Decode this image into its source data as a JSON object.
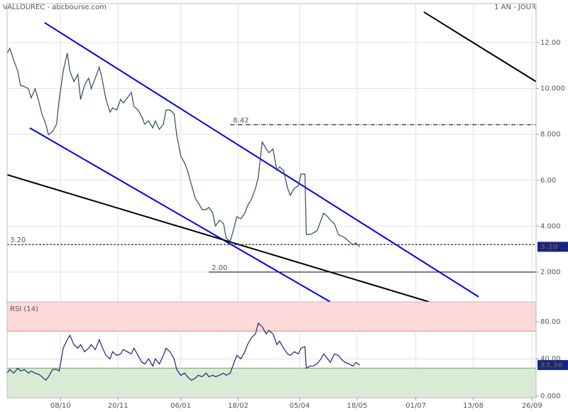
{
  "chart_data": [
    {
      "type": "line",
      "title": "VALLOUREC - abcbourse.com",
      "subtitle": "1 AN - JOUR",
      "x": [
        -40,
        -38,
        -35,
        -32,
        -30,
        -27,
        -24,
        -22,
        -19,
        -16,
        -14,
        -11,
        -9,
        -6,
        -3,
        -1,
        2,
        5,
        7,
        10,
        13,
        15,
        18,
        21,
        23,
        26,
        29,
        31,
        34,
        37,
        39,
        42,
        45,
        47,
        50,
        53,
        55,
        58,
        61,
        63,
        66,
        69,
        71,
        74,
        77,
        79,
        82,
        85,
        87,
        90,
        93,
        95,
        98,
        101,
        103,
        106,
        109,
        111,
        114,
        116,
        119,
        122,
        124,
        127,
        130,
        132,
        135,
        138,
        140,
        143,
        146,
        148,
        151,
        154,
        156,
        159,
        162,
        164,
        167,
        170,
        172,
        175,
        178,
        180,
        183,
        184,
        187,
        189,
        192,
        195,
        197,
        200,
        202,
        205,
        208,
        210,
        213,
        216,
        219,
        221,
        224
      ],
      "series": [
        {
          "color": "#2e4a5a",
          "values": [
            11.54,
            11.75,
            11.23,
            10.76,
            10.14,
            10.08,
            9.99,
            9.59,
            9.99,
            9.37,
            8.9,
            8.44,
            7.98,
            8.13,
            8.44,
            9.52,
            10.76,
            11.54,
            10.76,
            10.3,
            10.61,
            9.52,
            10.14,
            10.45,
            9.99,
            10.45,
            10.92,
            10.45,
            9.52,
            8.97,
            9.15,
            9.06,
            9.52,
            9.37,
            9.59,
            9.83,
            9.21,
            9.06,
            8.75,
            8.44,
            8.59,
            8.28,
            8.59,
            8.22,
            8.44,
            9.06,
            9.06,
            8.9,
            7.98,
            7.05,
            6.74,
            6.43,
            5.81,
            5.19,
            5.03,
            4.72,
            4.72,
            4.82,
            4.57,
            4.01,
            4.26,
            4.11,
            3.49,
            3.33,
            3.95,
            4.41,
            4.32,
            4.57,
            4.88,
            5.19,
            5.65,
            6.12,
            7.67,
            7.36,
            7.2,
            7.36,
            6.43,
            6.58,
            6.43,
            5.65,
            5.34,
            5.65,
            5.75,
            6.27,
            6.27,
            3.64,
            3.64,
            3.7,
            3.8,
            4.26,
            4.57,
            4.41,
            4.26,
            4.11,
            3.64,
            3.58,
            3.49,
            3.33,
            3.18,
            3.27,
            3.1
          ]
        }
      ],
      "last_value_label": "3.10",
      "label_color": "#1a237e",
      "xlim": [
        -40,
        356
      ],
      "xticks": [
        {
          "value": 0,
          "label": "08/10"
        },
        {
          "value": 43,
          "label": "20/11"
        },
        {
          "value": 90,
          "label": "06/01"
        },
        {
          "value": 133,
          "label": "18/02"
        },
        {
          "value": 179,
          "label": "05/04"
        },
        {
          "value": 222,
          "label": "18/05"
        },
        {
          "value": 266,
          "label": "01/07"
        },
        {
          "value": 309,
          "label": "13/08"
        },
        {
          "value": 353,
          "label": "26/09"
        }
      ],
      "ylim": [
        0.7,
        13.7
      ],
      "yticks": [
        {
          "value": 2,
          "label": "2.000"
        },
        {
          "value": 4,
          "label": "4.000"
        },
        {
          "value": 6,
          "label": "6.00"
        },
        {
          "value": 8,
          "label": "8.000"
        },
        {
          "value": 10,
          "label": "10.000"
        },
        {
          "value": 12,
          "label": "12.00"
        }
      ],
      "grid": true,
      "trendlines": [
        {
          "color": "#0000ee",
          "x": [
            -12,
            313
          ],
          "y": [
            12.87,
            0.92
          ]
        },
        {
          "color": "#0000ee",
          "x": [
            -23,
            202
          ],
          "y": [
            8.28,
            0.7
          ]
        },
        {
          "color": "#000000",
          "x": [
            -40,
            276
          ],
          "y": [
            6.24,
            0.7
          ]
        },
        {
          "color": "#000000",
          "x": [
            272,
            356
          ],
          "y": [
            13.33,
            10.3
          ]
        }
      ],
      "levels": [
        {
          "value": 8.42,
          "label": "8.42",
          "x_start": 127,
          "style": "dashdot",
          "label_color": "#cc0000"
        },
        {
          "value": 3.2,
          "label": "3.20",
          "x_start": -40,
          "style": "dashed",
          "label_color": "#cc0000"
        },
        {
          "value": 2,
          "label": "2.00",
          "x_start": 111,
          "style": "solid",
          "label_color": "#cc0000"
        }
      ]
    },
    {
      "type": "line",
      "title": "RSI (14)",
      "series": [
        {
          "color": "#1a237e",
          "values": [
            24.6,
            28.5,
            24.6,
            30,
            26.9,
            28.5,
            24.6,
            26.9,
            24.6,
            23.1,
            20.8,
            16.9,
            20.8,
            28.5,
            28.5,
            26.9,
            51.5,
            60.8,
            65.4,
            55.4,
            51.5,
            55.4,
            47.7,
            51.5,
            55.4,
            50,
            60.8,
            53.1,
            43.8,
            40,
            47.7,
            43.8,
            45.4,
            50,
            47.7,
            45.4,
            51.5,
            43.8,
            36.2,
            34.6,
            40,
            32.3,
            40,
            34.6,
            43.8,
            51.5,
            47.7,
            40,
            28.5,
            22.3,
            24.6,
            20.8,
            16.9,
            19.2,
            22.3,
            20.8,
            24.6,
            20.8,
            22.3,
            20.8,
            22.3,
            24.6,
            22.3,
            24.6,
            36.2,
            43.8,
            40,
            47.7,
            55.4,
            63.1,
            66.9,
            78.5,
            74.6,
            66.9,
            70.8,
            66.9,
            55.4,
            59.2,
            51.5,
            45.4,
            43.8,
            47.7,
            45.4,
            51.5,
            53.1,
            30,
            32.3,
            32.3,
            34.6,
            40,
            45.4,
            40,
            36.2,
            45.4,
            43.8,
            40,
            36.2,
            34.6,
            32.3,
            36.2,
            33.36
          ]
        }
      ],
      "label_color": "#1a237e",
      "ylim": [
        -2,
        101.5
      ],
      "yticks": [
        {
          "value": 0,
          "label": "0.000"
        },
        {
          "value": 40,
          "label": "40.00"
        },
        {
          "value": 80,
          "label": "80.00"
        }
      ],
      "grid": true,
      "zones": [
        {
          "from": 70,
          "to": 101.5,
          "color": "#ffd9d9",
          "edge": "#d98080"
        },
        {
          "from": -2,
          "to": 30,
          "color": "#d9ebd5",
          "edge": "#6a9e5e"
        }
      ]
    }
  ]
}
